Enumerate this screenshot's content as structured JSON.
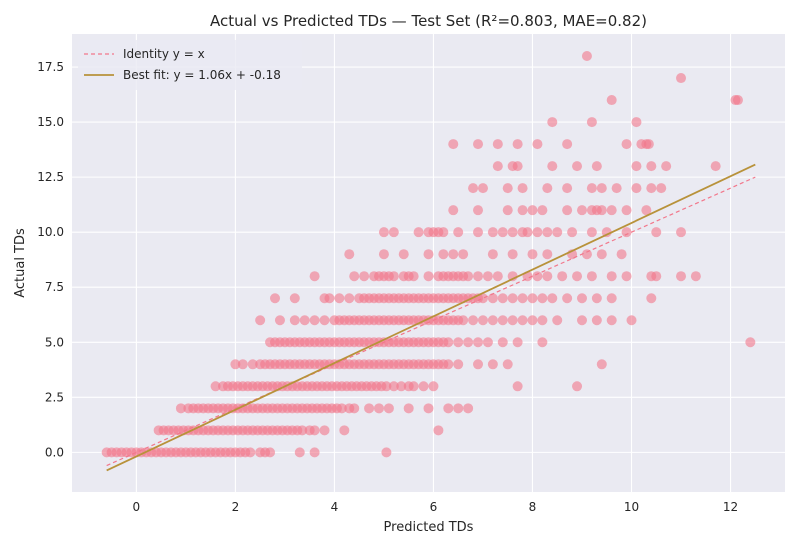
{
  "chart_data": {
    "type": "scatter",
    "title": "Actual vs Predicted TDs — Test Set (R²=0.803, MAE=0.82)",
    "xlabel": "Predicted TDs",
    "ylabel": "Actual TDs",
    "xlim": [
      -1.3,
      13.1
    ],
    "ylim": [
      -1.8,
      19.0
    ],
    "xticks": [
      0,
      2,
      4,
      6,
      8,
      10,
      12
    ],
    "xtick_labels": [
      "0",
      "2",
      "4",
      "6",
      "8",
      "10",
      "12"
    ],
    "yticks": [
      0.0,
      2.5,
      5.0,
      7.5,
      10.0,
      12.5,
      15.0,
      17.5
    ],
    "ytick_labels": [
      "0.0",
      "2.5",
      "5.0",
      "7.5",
      "10.0",
      "12.5",
      "15.0",
      "17.5"
    ],
    "grid": true,
    "legend_position": "top-left",
    "colors": {
      "background": "#eaeaf2",
      "grid": "#ffffff",
      "points": "#f2778b",
      "identity": "#f2778b",
      "fit": "#b8923a",
      "text": "#262626"
    },
    "lines": [
      {
        "name": "Identity y = x",
        "style": "dashed",
        "color": "#f2778b",
        "x": [
          -0.6,
          12.5
        ],
        "y": [
          -0.6,
          12.5
        ]
      },
      {
        "name": "Best fit: y = 1.06x + -0.18",
        "style": "solid",
        "color": "#b8923a",
        "x": [
          -0.6,
          12.5
        ],
        "y": [
          -0.82,
          13.07
        ]
      }
    ],
    "scatter": [
      {
        "y": 0,
        "x": [
          -0.6,
          -0.5,
          -0.4,
          -0.3,
          -0.2,
          -0.1,
          0.0,
          0.1,
          0.2,
          0.3,
          0.4,
          0.5,
          0.6,
          0.7,
          0.8,
          0.9,
          1.0,
          1.1,
          1.2,
          1.3,
          1.4,
          1.5,
          1.6,
          1.7,
          1.8,
          1.9,
          2.0,
          2.1,
          2.2,
          2.3,
          2.5,
          2.6,
          2.7,
          3.3,
          3.6,
          5.05
        ]
      },
      {
        "y": 1,
        "x": [
          0.45,
          0.55,
          0.65,
          0.75,
          0.85,
          0.95,
          1.05,
          1.15,
          1.25,
          1.35,
          1.45,
          1.55,
          1.65,
          1.75,
          1.85,
          1.95,
          2.05,
          2.15,
          2.25,
          2.35,
          2.45,
          2.55,
          2.65,
          2.75,
          2.85,
          2.95,
          3.05,
          3.15,
          3.25,
          3.35,
          3.5,
          3.6,
          3.8,
          4.2,
          6.1
        ]
      },
      {
        "y": 2,
        "x": [
          0.9,
          1.05,
          1.15,
          1.25,
          1.35,
          1.45,
          1.55,
          1.65,
          1.75,
          1.85,
          1.95,
          2.05,
          2.15,
          2.25,
          2.35,
          2.45,
          2.55,
          2.65,
          2.75,
          2.85,
          2.95,
          3.05,
          3.15,
          3.25,
          3.35,
          3.45,
          3.55,
          3.65,
          3.75,
          3.85,
          3.95,
          4.05,
          4.15,
          4.3,
          4.4,
          4.7,
          4.9,
          5.1,
          5.5,
          5.9,
          6.3,
          6.5,
          6.7
        ]
      },
      {
        "y": 3,
        "x": [
          1.6,
          1.75,
          1.85,
          1.95,
          2.05,
          2.15,
          2.25,
          2.35,
          2.45,
          2.55,
          2.65,
          2.75,
          2.85,
          2.95,
          3.05,
          3.15,
          3.25,
          3.35,
          3.45,
          3.55,
          3.65,
          3.75,
          3.85,
          3.95,
          4.05,
          4.15,
          4.25,
          4.35,
          4.45,
          4.55,
          4.65,
          4.75,
          4.85,
          4.95,
          5.05,
          5.2,
          5.35,
          5.5,
          5.6,
          5.8,
          6.0,
          7.7,
          8.9
        ]
      },
      {
        "y": 4,
        "x": [
          2.0,
          2.15,
          2.35,
          2.5,
          2.6,
          2.7,
          2.8,
          2.9,
          3.0,
          3.1,
          3.2,
          3.3,
          3.4,
          3.5,
          3.6,
          3.7,
          3.8,
          3.9,
          4.0,
          4.1,
          4.2,
          4.3,
          4.4,
          4.5,
          4.6,
          4.7,
          4.8,
          4.9,
          5.0,
          5.1,
          5.2,
          5.3,
          5.4,
          5.5,
          5.6,
          5.7,
          5.8,
          5.9,
          6.0,
          6.1,
          6.2,
          6.3,
          6.5,
          6.9,
          7.2,
          7.5,
          9.4
        ]
      },
      {
        "y": 5,
        "x": [
          2.7,
          2.8,
          2.9,
          3.0,
          3.1,
          3.2,
          3.3,
          3.4,
          3.5,
          3.6,
          3.7,
          3.8,
          3.9,
          4.0,
          4.1,
          4.2,
          4.3,
          4.4,
          4.5,
          4.6,
          4.7,
          4.8,
          4.9,
          5.0,
          5.1,
          5.2,
          5.3,
          5.4,
          5.5,
          5.6,
          5.7,
          5.8,
          5.9,
          6.0,
          6.1,
          6.2,
          6.3,
          6.5,
          6.7,
          6.9,
          7.1,
          7.4,
          7.7,
          8.2,
          12.4
        ]
      },
      {
        "y": 6,
        "x": [
          2.5,
          2.9,
          3.2,
          3.4,
          3.6,
          3.8,
          4.0,
          4.1,
          4.2,
          4.3,
          4.4,
          4.5,
          4.6,
          4.7,
          4.8,
          4.9,
          5.0,
          5.1,
          5.2,
          5.3,
          5.4,
          5.5,
          5.6,
          5.7,
          5.8,
          5.9,
          6.0,
          6.1,
          6.2,
          6.3,
          6.4,
          6.5,
          6.6,
          6.8,
          7.0,
          7.2,
          7.4,
          7.6,
          7.8,
          8.0,
          8.2,
          8.5,
          9.0,
          9.3,
          9.6,
          10.0
        ]
      },
      {
        "y": 7,
        "x": [
          2.8,
          3.2,
          3.8,
          3.9,
          4.1,
          4.3,
          4.5,
          4.6,
          4.7,
          4.8,
          4.9,
          5.0,
          5.1,
          5.2,
          5.3,
          5.4,
          5.5,
          5.6,
          5.7,
          5.8,
          5.9,
          6.0,
          6.1,
          6.2,
          6.3,
          6.4,
          6.5,
          6.6,
          6.7,
          6.8,
          6.9,
          7.0,
          7.2,
          7.4,
          7.6,
          7.8,
          8.0,
          8.2,
          8.4,
          8.7,
          9.0,
          9.3,
          9.6,
          10.4
        ]
      },
      {
        "y": 8,
        "x": [
          3.6,
          4.4,
          4.6,
          4.8,
          4.9,
          5.0,
          5.1,
          5.2,
          5.4,
          5.5,
          5.6,
          5.9,
          6.1,
          6.2,
          6.3,
          6.4,
          6.5,
          6.6,
          6.7,
          6.9,
          7.1,
          7.3,
          7.6,
          7.9,
          8.1,
          8.3,
          8.6,
          8.9,
          9.2,
          9.6,
          9.9,
          10.4,
          10.5,
          11.0,
          11.3
        ]
      },
      {
        "y": 9,
        "x": [
          4.3,
          5.0,
          5.4,
          5.9,
          6.2,
          6.4,
          6.6,
          7.2,
          7.6,
          8.0,
          8.3,
          8.8,
          9.1,
          9.4,
          9.8
        ]
      },
      {
        "y": 10,
        "x": [
          5.0,
          5.2,
          5.7,
          5.9,
          6.0,
          6.1,
          6.2,
          6.5,
          6.9,
          7.2,
          7.4,
          7.6,
          7.8,
          7.9,
          8.1,
          8.3,
          8.5,
          8.8,
          9.2,
          9.5,
          9.9,
          10.5,
          11.0
        ]
      },
      {
        "y": 11,
        "x": [
          6.4,
          6.9,
          7.5,
          7.8,
          8.0,
          8.2,
          8.7,
          9.0,
          9.2,
          9.3,
          9.4,
          9.6,
          9.9,
          10.3
        ]
      },
      {
        "y": 12,
        "x": [
          6.8,
          7.0,
          7.5,
          7.8,
          8.3,
          8.7,
          9.2,
          9.4,
          9.7,
          10.1,
          10.4,
          10.6
        ]
      },
      {
        "y": 13,
        "x": [
          7.3,
          7.6,
          7.7,
          8.4,
          8.9,
          9.3,
          10.1,
          10.4,
          10.7,
          11.7
        ]
      },
      {
        "y": 14,
        "x": [
          6.4,
          6.9,
          7.3,
          7.7,
          8.1,
          8.7,
          9.9,
          10.2,
          10.3,
          10.35
        ]
      },
      {
        "y": 15,
        "x": [
          8.4,
          9.2,
          10.1
        ]
      },
      {
        "y": 16,
        "x": [
          9.6,
          12.1,
          12.15
        ]
      },
      {
        "y": 17,
        "x": [
          11.0
        ]
      },
      {
        "y": 18,
        "x": [
          9.1
        ]
      }
    ]
  }
}
